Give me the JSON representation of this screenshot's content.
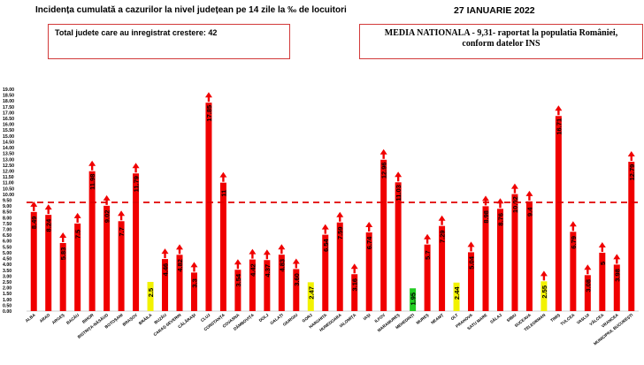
{
  "header": {
    "title": "Incidența cumulată a cazurilor la nivel județean pe 14 zile la ‰ de locuitori",
    "date": "27 IANUARIE 2022"
  },
  "summary": {
    "increase_text": "Total judete care au inregistrat crestere: 42",
    "national_line1": "MEDIA NATIONALA - 9,31-  raportat la populatia României,",
    "national_line2": "conform datelor INS"
  },
  "chart_data": {
    "type": "bar",
    "title": "Incidența cumulată a cazurilor la nivel județean pe 14 zile la ‰ de locuitori",
    "categories": [
      "ALBA",
      "ARAD",
      "ARGEȘ",
      "BACĂU",
      "BIHOR",
      "BISTRIȚA-NĂSĂUD",
      "BOTOȘANI",
      "BRAȘOV",
      "BRĂILA",
      "BUZĂU",
      "CARAȘ-SEVERIN",
      "CĂLĂRAȘI",
      "CLUJ",
      "CONSTANȚA",
      "COVASNA",
      "DÂMBOVIȚA",
      "DOLJ",
      "GALAȚI",
      "GIURGIU",
      "GORJ",
      "HARGHITA",
      "HUNEDOARA",
      "IALOMIȚA",
      "IAȘI",
      "ILFOV",
      "MARAMUREȘ",
      "MEHEDINȚI",
      "MUREȘ",
      "NEAMȚ",
      "OLT",
      "PRAHOVA",
      "SATU MARE",
      "SĂLAJ",
      "SIBIU",
      "SUCEAVA",
      "TELEORMAN",
      "TIMIȘ",
      "TULCEA",
      "VASLUI",
      "VÂLCEA",
      "VRANCEA",
      "MUNICIPIUL BUCUREȘTI"
    ],
    "values": [
      8.49,
      8.24,
      5.83,
      7.5,
      11.98,
      9.02,
      7.7,
      11.79,
      2.5,
      4.46,
      4.82,
      3.3,
      17.85,
      11,
      3.54,
      4.42,
      4.37,
      4.83,
      3.6,
      2.47,
      6.54,
      7.59,
      3.16,
      6.74,
      12.96,
      11.03,
      1.95,
      5.7,
      7.29,
      2.44,
      5.04,
      8.98,
      8.76,
      10.02,
      9.4,
      2.55,
      16.71,
      6.79,
      3.08,
      5,
      3.98,
      12.79
    ],
    "labels": [
      "8.49",
      "8.24",
      "5.83",
      "7.5",
      "11.98",
      "9.02",
      "7.7",
      "11.79",
      "2.5",
      "4.46",
      "4.82",
      "3.3",
      "17.85",
      "11",
      "3.54",
      "4.42",
      "4.37",
      "4.83",
      "3.60",
      "2.47",
      "6.54",
      "7.59",
      "3.16",
      "6.74",
      "12.96",
      "11.03",
      "1.95",
      "5.7",
      "7.29",
      "2.44",
      "5.04",
      "8.98",
      "8.76",
      "10.02",
      "9.4",
      "2.55",
      "16.71",
      "6.79",
      "3.08",
      "5",
      "3.98",
      "12.79"
    ],
    "trend": [
      "up",
      "up",
      "up",
      "up",
      "up",
      "up",
      "up",
      "up",
      "none",
      "up",
      "up",
      "up",
      "up",
      "up",
      "up",
      "up",
      "up",
      "up",
      "up",
      "none",
      "up",
      "up",
      "up",
      "up",
      "up",
      "up",
      "none",
      "up",
      "up",
      "none",
      "up",
      "up",
      "up",
      "up",
      "up",
      "up",
      "up",
      "up",
      "up",
      "up",
      "up",
      "up"
    ],
    "ylim": [
      0,
      19
    ],
    "yticks": [
      "0.00",
      "0.50",
      "1.00",
      "1.50",
      "2.00",
      "2.50",
      "3.00",
      "3.50",
      "4.00",
      "4.50",
      "5.00",
      "5.50",
      "6.00",
      "6.50",
      "7.00",
      "7.50",
      "8.00",
      "8.50",
      "9.00",
      "9.50",
      "10.00",
      "10.50",
      "11.00",
      "11.50",
      "12.00",
      "12.50",
      "13.00",
      "13.50",
      "14.00",
      "14.50",
      "15.00",
      "15.50",
      "16.00",
      "16.50",
      "17.00",
      "17.50",
      "18.00",
      "18.50",
      "19.00"
    ],
    "reference_line": 9.31,
    "grid": false,
    "colors": {
      "above": "#f00000",
      "low": "#f2f200",
      "lowest": "#22cc22",
      "arrow": "#f00000",
      "reference": "#e00000"
    }
  }
}
